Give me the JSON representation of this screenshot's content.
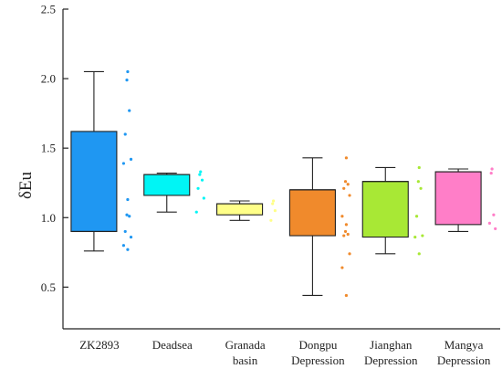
{
  "chart_data": {
    "type": "box",
    "title": "",
    "xlabel": "",
    "ylabel": "δEu",
    "ylim": [
      0.2,
      2.5
    ],
    "yticks": [
      0.5,
      1.0,
      1.5,
      2.0,
      2.5
    ],
    "grid": false,
    "categories": [
      {
        "lines": [
          "ZK2893"
        ]
      },
      {
        "lines": [
          "Deadsea"
        ]
      },
      {
        "lines": [
          "Granada",
          "basin"
        ]
      },
      {
        "lines": [
          "Dongpu",
          "Depression"
        ]
      },
      {
        "lines": [
          "Jianghan",
          "Depression"
        ]
      },
      {
        "lines": [
          "Mangya",
          "Depression"
        ]
      }
    ],
    "series": [
      {
        "color": "#1f97f2",
        "min": 0.76,
        "q1": 0.9,
        "median": 0.9,
        "q3": 1.62,
        "max": 2.05,
        "points": [
          2.05,
          1.99,
          1.77,
          1.6,
          1.42,
          1.39,
          1.13,
          1.02,
          1.01,
          0.9,
          0.86,
          0.8,
          0.77
        ]
      },
      {
        "color": "#00f5f5",
        "min": 1.04,
        "q1": 1.16,
        "median": 1.31,
        "q3": 1.31,
        "max": 1.32,
        "points": [
          1.33,
          1.31,
          1.27,
          1.21,
          1.14,
          1.04
        ]
      },
      {
        "color": "#ffff88",
        "min": 0.98,
        "q1": 1.02,
        "median": 1.1,
        "q3": 1.1,
        "max": 1.12,
        "points": [
          1.12,
          1.1,
          1.05,
          0.98
        ]
      },
      {
        "color": "#f08a2c",
        "min": 0.44,
        "q1": 0.87,
        "median": 1.2,
        "q3": 1.2,
        "max": 1.43,
        "points": [
          1.43,
          1.26,
          1.24,
          1.21,
          1.16,
          1.01,
          0.95,
          0.9,
          0.88,
          0.87,
          0.74,
          0.64,
          0.44
        ]
      },
      {
        "color": "#a8e835",
        "min": 0.74,
        "q1": 0.86,
        "median": 1.26,
        "q3": 1.26,
        "max": 1.36,
        "points": [
          1.36,
          1.26,
          1.21,
          1.01,
          0.87,
          0.86,
          0.74
        ]
      },
      {
        "color": "#ff7ec8",
        "min": 0.9,
        "q1": 0.95,
        "median": 1.33,
        "q3": 1.33,
        "max": 1.35,
        "points": [
          1.35,
          1.32,
          1.02,
          0.96,
          0.92
        ]
      }
    ]
  }
}
